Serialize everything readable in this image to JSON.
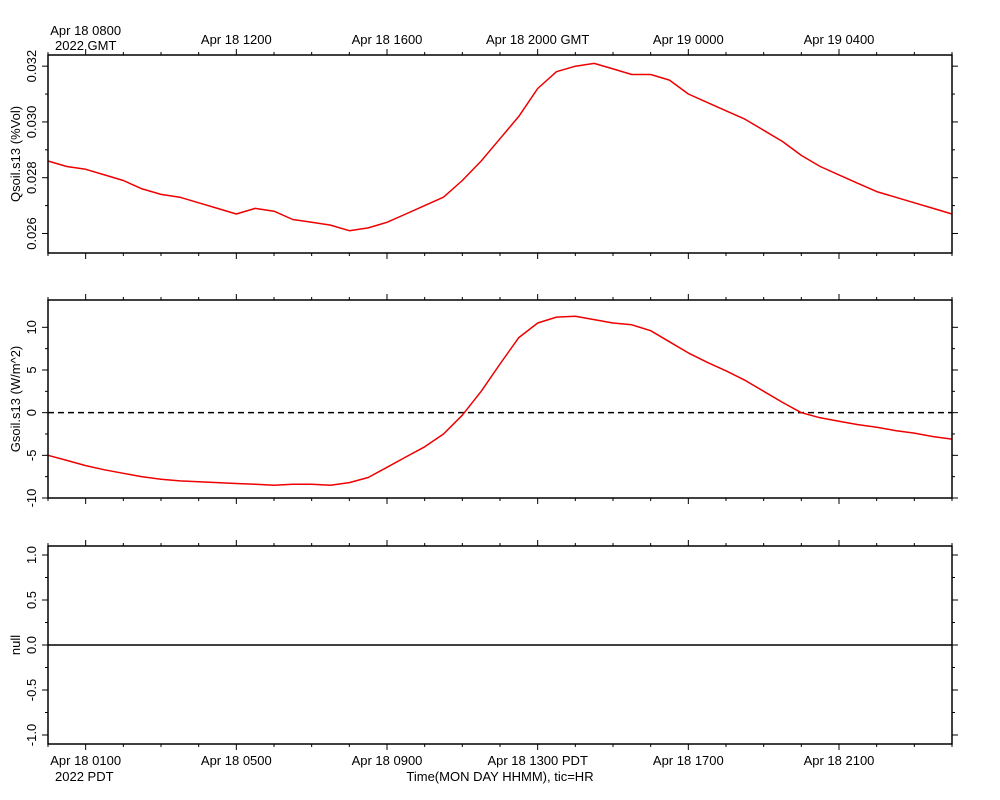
{
  "chart_data": [
    {
      "type": "line",
      "ylabel": "Qsoil.s13 (%Vol)",
      "ylim": [
        0.0253,
        0.0324
      ],
      "yticks": [
        0.026,
        0.028,
        0.03,
        0.032
      ],
      "ytick_labels": [
        "0.026",
        "0.028",
        "0.030",
        "0.032"
      ],
      "grid": false,
      "x_hours_pdt": [
        0,
        0.5,
        1,
        1.5,
        2,
        2.5,
        3,
        3.5,
        4,
        4.5,
        5,
        5.5,
        6,
        6.5,
        7,
        7.5,
        8,
        8.5,
        9,
        9.5,
        10,
        10.5,
        11,
        11.5,
        12,
        12.5,
        13,
        13.5,
        14,
        14.5,
        15,
        15.5,
        16,
        16.5,
        17,
        17.5,
        18,
        18.5,
        19,
        19.5,
        20,
        20.5,
        21,
        21.5,
        22,
        22.5,
        23,
        23.5,
        24
      ],
      "series": [
        {
          "color": "#ee0000",
          "values": [
            0.0286,
            0.0284,
            0.0283,
            0.0281,
            0.0279,
            0.0276,
            0.0274,
            0.0273,
            0.0271,
            0.0269,
            0.0267,
            0.0269,
            0.0268,
            0.0265,
            0.0264,
            0.0263,
            0.0261,
            0.0262,
            0.0264,
            0.0267,
            0.027,
            0.0273,
            0.0279,
            0.0286,
            0.0294,
            0.0302,
            0.0312,
            0.0318,
            0.032,
            0.0321,
            0.0319,
            0.0317,
            0.0317,
            0.0315,
            0.031,
            0.0307,
            0.0304,
            0.0301,
            0.0297,
            0.0293,
            0.0288,
            0.0284,
            0.0281,
            0.0278,
            0.0275,
            0.0273,
            0.0271,
            0.0269,
            0.0267
          ]
        }
      ]
    },
    {
      "type": "line",
      "ylabel": "Gsoil.s13 (W/m^2)",
      "ylim": [
        -10,
        13.2
      ],
      "yticks": [
        -10,
        -5,
        0,
        5,
        10
      ],
      "ytick_labels": [
        "-10",
        "-5",
        "0",
        "5",
        "10"
      ],
      "zero_line": {
        "y": 0,
        "style": "dashed"
      },
      "grid": false,
      "x_hours_pdt": [
        0,
        0.5,
        1,
        1.5,
        2,
        2.5,
        3,
        3.5,
        4,
        4.5,
        5,
        5.5,
        6,
        6.5,
        7,
        7.5,
        8,
        8.5,
        9,
        9.5,
        10,
        10.5,
        11,
        11.5,
        12,
        12.5,
        13,
        13.5,
        14,
        14.5,
        15,
        15.5,
        16,
        16.5,
        17,
        17.5,
        18,
        18.5,
        19,
        19.5,
        20,
        20.5,
        21,
        21.5,
        22,
        22.5,
        23,
        23.5,
        24
      ],
      "series": [
        {
          "color": "#ee0000",
          "values": [
            -5.0,
            -5.6,
            -6.2,
            -6.7,
            -7.1,
            -7.5,
            -7.8,
            -8.0,
            -8.1,
            -8.2,
            -8.3,
            -8.4,
            -8.5,
            -8.4,
            -8.4,
            -8.5,
            -8.2,
            -7.6,
            -6.4,
            -5.2,
            -4.0,
            -2.5,
            -0.3,
            2.5,
            5.7,
            8.8,
            10.5,
            11.2,
            11.3,
            10.9,
            10.5,
            10.3,
            9.6,
            8.3,
            7.0,
            5.9,
            4.9,
            3.8,
            2.5,
            1.2,
            0.0,
            -0.6,
            -1.0,
            -1.4,
            -1.7,
            -2.1,
            -2.4,
            -2.8,
            -3.1
          ]
        }
      ]
    },
    {
      "type": "line",
      "ylabel": "null",
      "ylim": [
        -1.1,
        1.1
      ],
      "yticks": [
        -1.0,
        -0.5,
        0.0,
        0.5,
        1.0
      ],
      "ytick_labels": [
        "-1.0",
        "-0.5",
        "0.0",
        "0.5",
        "1.0"
      ],
      "grid": false,
      "x_hours_pdt": [
        0,
        24
      ],
      "series": [
        {
          "color": "#000000",
          "values": [
            0,
            0
          ]
        }
      ]
    }
  ],
  "x_axis": {
    "start_pdt": "Apr 18 0000 PDT",
    "range_hours": [
      0,
      24
    ],
    "gmt_offset_hours": 7,
    "tick_hours_pdt": [
      1,
      5,
      9,
      13,
      17,
      21
    ],
    "top_tick_labels": [
      "Apr 18 0800",
      "Apr 18 1200",
      "Apr 18 1600",
      "Apr 18 2000 GMT",
      "Apr 19 0000",
      "Apr 19 0400"
    ],
    "top_year_label": "2022 GMT",
    "bottom_tick_labels": [
      "Apr 18 0100",
      "Apr 18 0500",
      "Apr 18 0900",
      "Apr 18 1300 PDT",
      "Apr 18 1700",
      "Apr 18 2100"
    ],
    "bottom_year_label": "2022 PDT",
    "xlabel": "Time(MON DAY HHMM), tic=HR"
  }
}
